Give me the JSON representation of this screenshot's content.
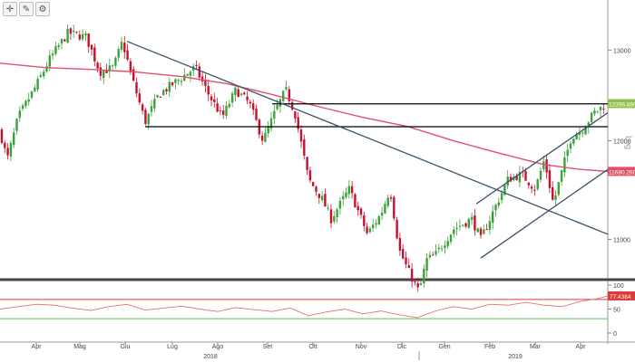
{
  "toolbar": {
    "buttons": [
      {
        "name": "crosshair",
        "glyph": "✛"
      },
      {
        "name": "draw-tool",
        "glyph": "✎"
      },
      {
        "name": "settings",
        "glyph": "⚙"
      }
    ]
  },
  "colors": {
    "up": "#3aa23a",
    "down": "#c8102e",
    "ma": "#e0506a",
    "trend": "#37506e",
    "level": "#000000",
    "rsi": "#e07080",
    "rsi_upper": "#e03a3a",
    "rsi_lower": "#55c455",
    "last_price_bg": "#8fc24a",
    "ma_label_bg": "#e0506a"
  },
  "axis_label": "Log",
  "chart_data": [
    {
      "type": "candlestick",
      "title": "",
      "y_scale": "log",
      "ylim": [
        10650,
        13350
      ],
      "y_ticks": [
        11000,
        12000,
        13000
      ],
      "x_ticks": [
        "Apr",
        "Mag",
        "Giu",
        "Lug",
        "Ago",
        "Set",
        "Ott",
        "Nov",
        "Dic",
        "Gen",
        "Feb",
        "Mar",
        "Apr"
      ],
      "year_labels": [
        "2018",
        "2019"
      ],
      "last_price_label": "12396.8808",
      "ma_label": "11680.2603",
      "close_path": [
        [
          0,
          12100
        ],
        [
          8,
          11800
        ],
        [
          20,
          12250
        ],
        [
          40,
          12600
        ],
        [
          55,
          12900
        ],
        [
          75,
          13200
        ],
        [
          95,
          13150
        ],
        [
          110,
          12750
        ],
        [
          125,
          12800
        ],
        [
          135,
          13100
        ],
        [
          145,
          12700
        ],
        [
          160,
          12200
        ],
        [
          175,
          12500
        ],
        [
          195,
          12650
        ],
        [
          215,
          12800
        ],
        [
          230,
          12500
        ],
        [
          245,
          12250
        ],
        [
          260,
          12550
        ],
        [
          275,
          12400
        ],
        [
          290,
          12000
        ],
        [
          305,
          12350
        ],
        [
          315,
          12550
        ],
        [
          325,
          12300
        ],
        [
          340,
          11600
        ],
        [
          355,
          11400
        ],
        [
          365,
          11200
        ],
        [
          385,
          11500
        ],
        [
          405,
          11050
        ],
        [
          420,
          11250
        ],
        [
          430,
          11500
        ],
        [
          440,
          10900
        ],
        [
          450,
          10700
        ],
        [
          462,
          10500
        ],
        [
          470,
          10800
        ],
        [
          480,
          10850
        ],
        [
          500,
          11100
        ],
        [
          520,
          11200
        ],
        [
          530,
          11000
        ],
        [
          545,
          11300
        ],
        [
          560,
          11600
        ],
        [
          575,
          11650
        ],
        [
          590,
          11500
        ],
        [
          600,
          11800
        ],
        [
          610,
          11350
        ],
        [
          620,
          11700
        ],
        [
          630,
          12050
        ],
        [
          640,
          12100
        ],
        [
          655,
          12300
        ],
        [
          668,
          12400
        ]
      ],
      "series": [
        {
          "name": "",
          "type": "moving-average",
          "points": [
            [
              0,
              12850
            ],
            [
              50,
              12800
            ],
            [
              100,
              12780
            ],
            [
              150,
              12750
            ],
            [
              200,
              12700
            ],
            [
              250,
              12620
            ],
            [
              300,
              12500
            ],
            [
              350,
              12370
            ],
            [
              400,
              12250
            ],
            [
              450,
              12150
            ],
            [
              500,
              12000
            ],
            [
              550,
              11870
            ],
            [
              600,
              11750
            ],
            [
              640,
              11700
            ],
            [
              670,
              11680
            ]
          ]
        }
      ],
      "horizontal_levels": [
        {
          "value": 12396.88,
          "x_start": 300
        },
        {
          "value": 12150,
          "x_start": 160
        }
      ],
      "trendlines": [
        {
          "from": [
            140,
            13100
          ],
          "to": [
            670,
            11050
          ]
        },
        {
          "from": [
            525,
            11350
          ],
          "to": [
            670,
            12300
          ]
        },
        {
          "from": [
            530,
            10820
          ],
          "to": [
            670,
            11700
          ]
        }
      ]
    },
    {
      "type": "line",
      "title": "",
      "name": "RSI",
      "ylim": [
        0,
        100
      ],
      "y_ticks": [
        0,
        50,
        100
      ],
      "reference_levels": [
        70,
        30
      ],
      "last_value_label": "77.4384",
      "points": [
        [
          0,
          50
        ],
        [
          20,
          55
        ],
        [
          40,
          60
        ],
        [
          60,
          58
        ],
        [
          80,
          52
        ],
        [
          100,
          47
        ],
        [
          120,
          55
        ],
        [
          140,
          60
        ],
        [
          160,
          48
        ],
        [
          180,
          52
        ],
        [
          200,
          56
        ],
        [
          220,
          50
        ],
        [
          240,
          45
        ],
        [
          260,
          53
        ],
        [
          280,
          49
        ],
        [
          300,
          45
        ],
        [
          320,
          52
        ],
        [
          340,
          36
        ],
        [
          360,
          44
        ],
        [
          380,
          50
        ],
        [
          400,
          40
        ],
        [
          420,
          46
        ],
        [
          440,
          38
        ],
        [
          460,
          32
        ],
        [
          480,
          46
        ],
        [
          500,
          55
        ],
        [
          520,
          50
        ],
        [
          540,
          60
        ],
        [
          560,
          58
        ],
        [
          580,
          64
        ],
        [
          600,
          58
        ],
        [
          620,
          55
        ],
        [
          640,
          66
        ],
        [
          660,
          72
        ],
        [
          670,
          77.4
        ]
      ]
    }
  ]
}
